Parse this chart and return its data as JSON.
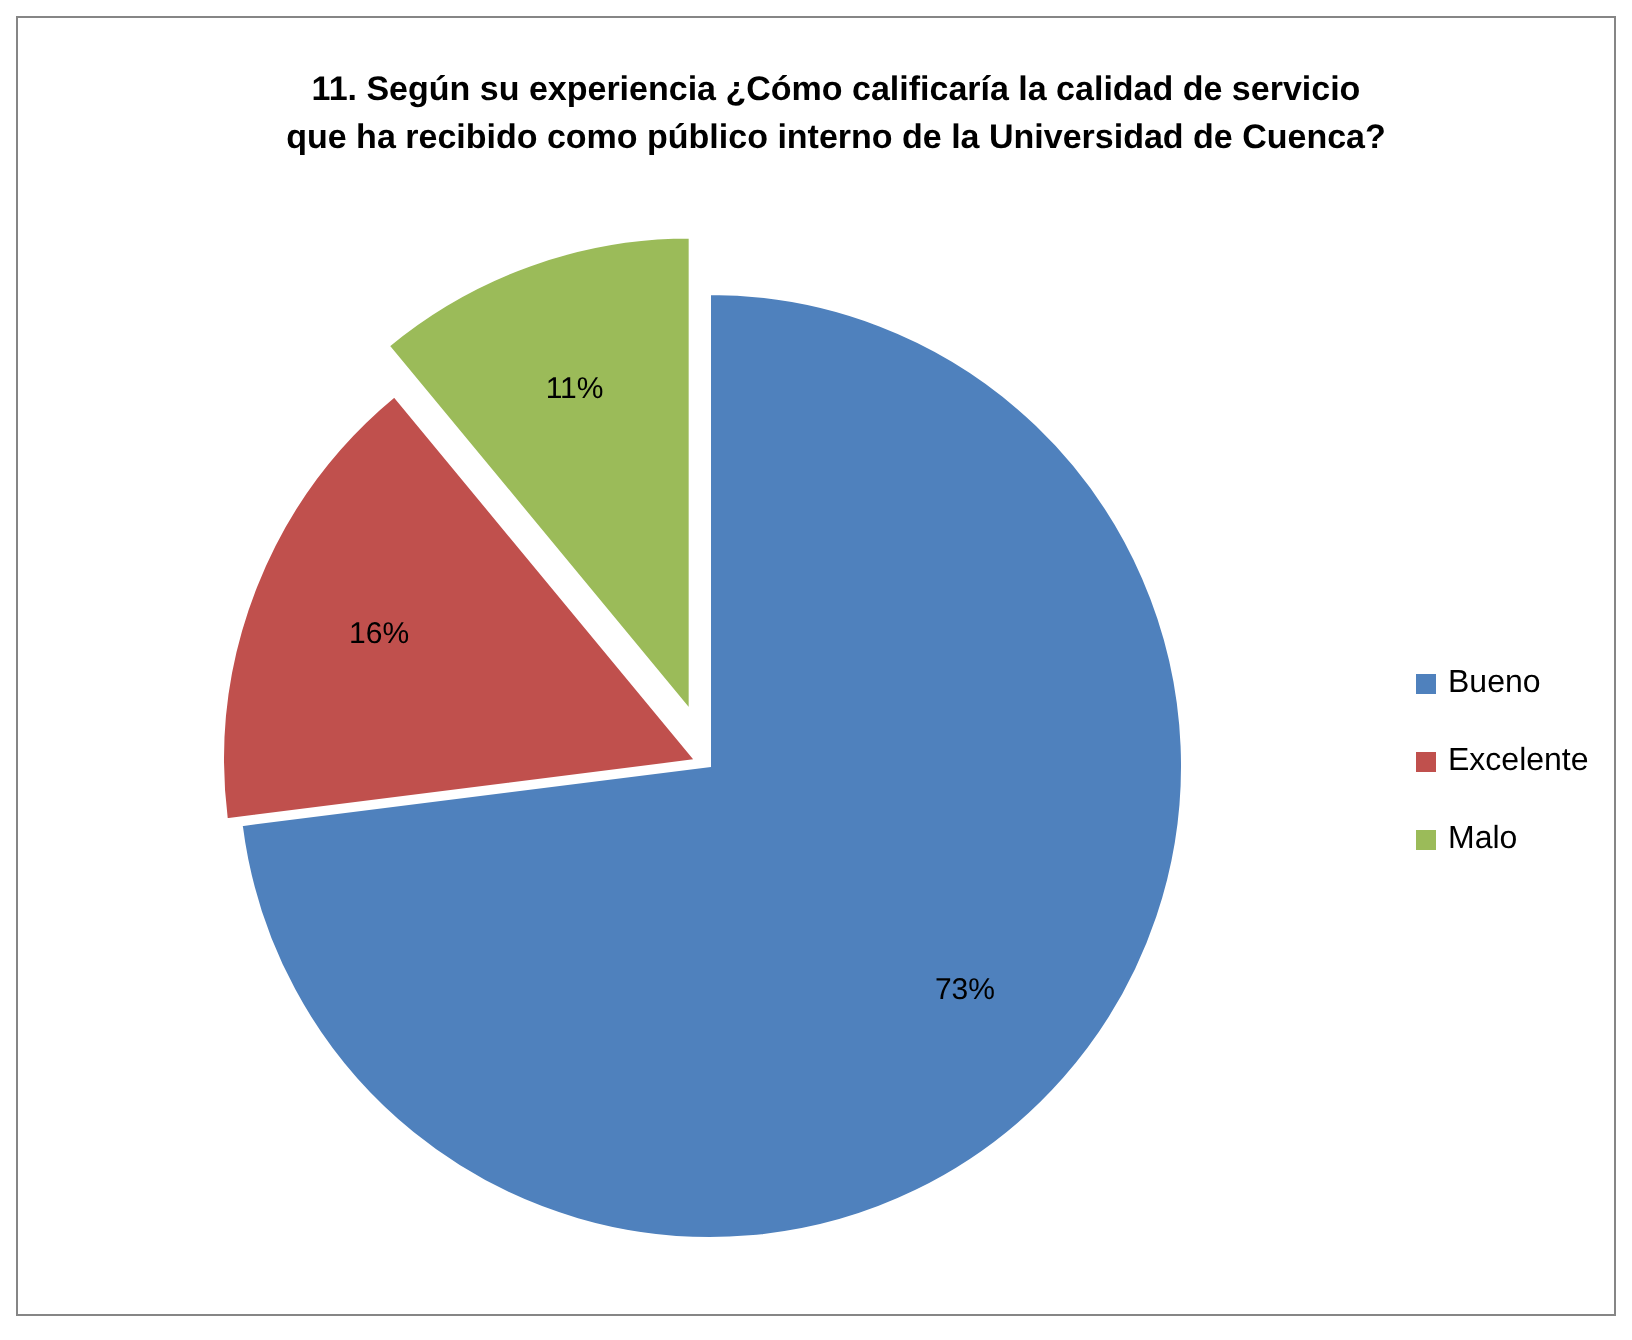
{
  "chart_data": {
    "type": "pie",
    "title": "11. Según su experiencia ¿Cómo calificaría la calidad de servicio\nque ha recibido como público interno de la Universidad de Cuenca?",
    "categories": [
      "Bueno",
      "Excelente",
      "Malo"
    ],
    "values": [
      73,
      16,
      11
    ],
    "colors": [
      "#4f81bd",
      "#c0504d",
      "#9bbb59"
    ],
    "value_labels": [
      "73%",
      "16%",
      "11%"
    ],
    "legend": "right"
  }
}
